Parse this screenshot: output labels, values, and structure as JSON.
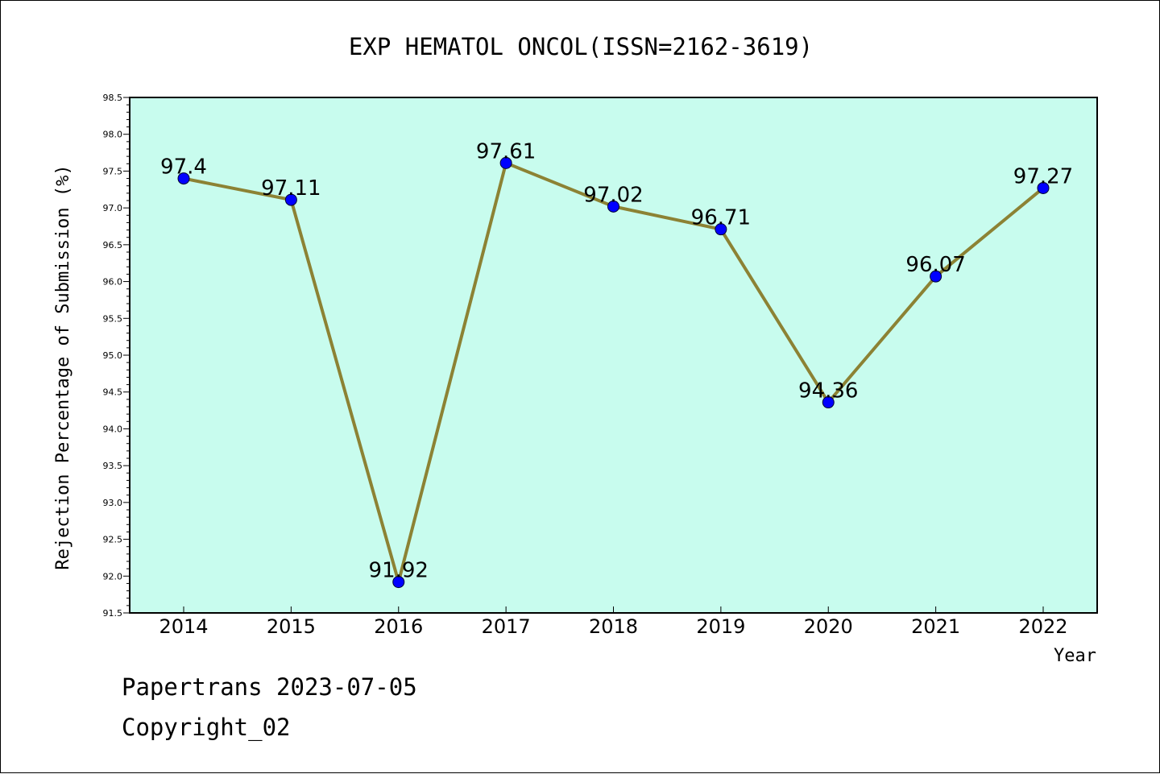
{
  "chart_data": {
    "type": "line",
    "title": "EXP HEMATOL ONCOL(ISSN=2162-3619)",
    "xlabel": "Year",
    "ylabel": "Rejection Percentage of Submission (%)",
    "categories": [
      "2014",
      "2015",
      "2016",
      "2017",
      "2018",
      "2019",
      "2020",
      "2021",
      "2022"
    ],
    "series": [
      {
        "values": [
          97.4,
          97.11,
          91.92,
          97.61,
          97.02,
          96.71,
          94.36,
          96.07,
          97.27
        ],
        "labels": [
          "97.4",
          "97.11",
          "91.92",
          "97.61",
          "97.02",
          "96.71",
          "94.36",
          "96.07",
          "97.27"
        ]
      }
    ],
    "ylim": [
      91.5,
      98.5
    ],
    "yticks": [
      "91.5",
      "92.0",
      "92.5",
      "93.0",
      "93.5",
      "94.0",
      "94.5",
      "95.0",
      "95.5",
      "96.0",
      "96.5",
      "97.0",
      "97.5",
      "98.0",
      "98.5"
    ],
    "grid": false,
    "colors": {
      "plot_background": "#c8fcee",
      "line": "#8c8234",
      "marker": "#0000ff"
    }
  },
  "footer": {
    "line1": "Papertrans 2023-07-05",
    "line2": "Copyright_02"
  }
}
